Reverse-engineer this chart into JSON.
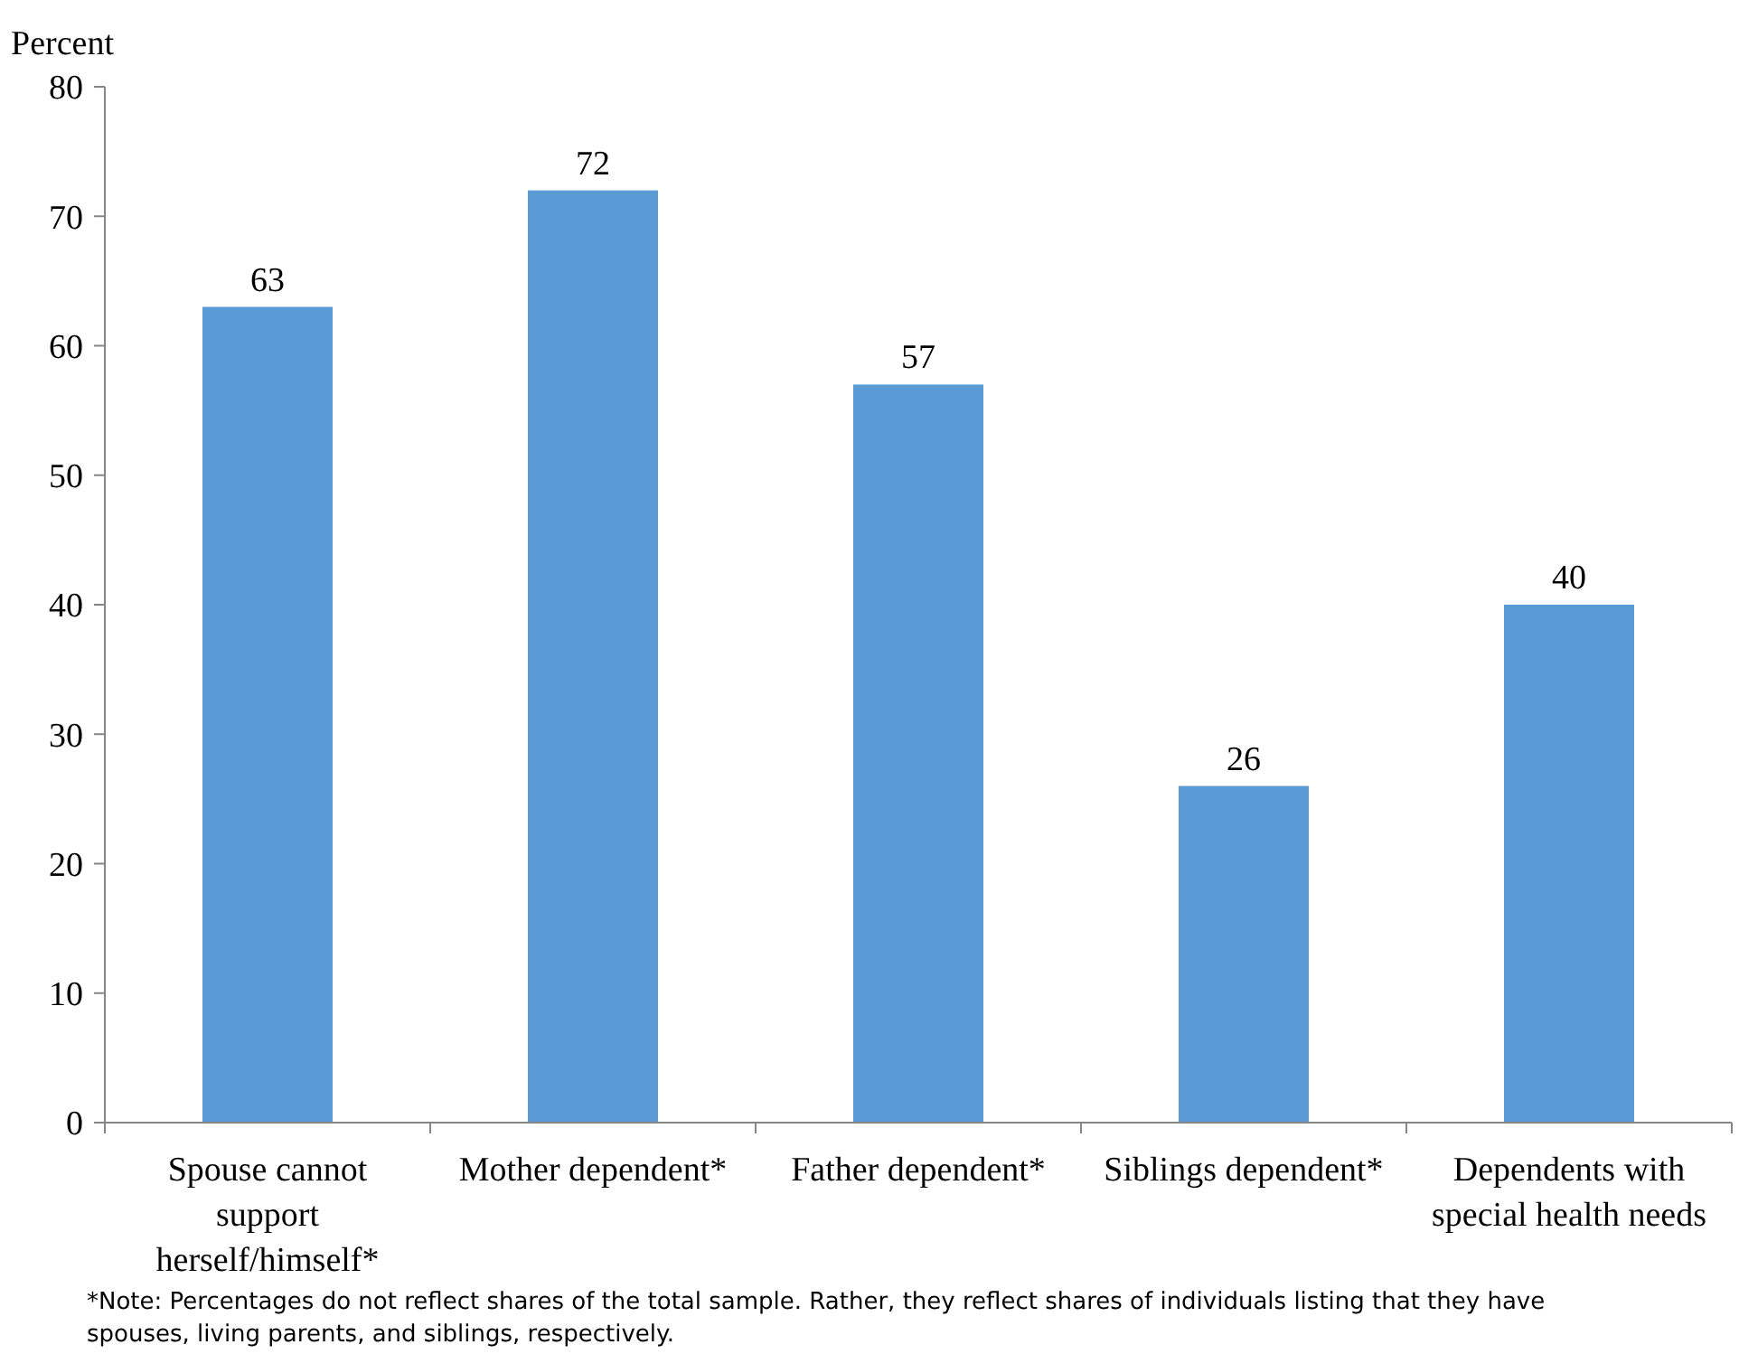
{
  "chart_data": {
    "type": "bar",
    "ylabel": "Percent",
    "categories": [
      "Spouse cannot support herself/himself*",
      "Mother dependent*",
      "Father dependent*",
      "Siblings dependent*",
      "Dependents with special health needs"
    ],
    "values": [
      63,
      72,
      57,
      26,
      40
    ],
    "color": "#5b9bd5",
    "ylim": [
      0,
      80
    ],
    "yticks": [
      0,
      10,
      20,
      30,
      40,
      50,
      60,
      70,
      80
    ],
    "grid": false,
    "data_labels": true,
    "annotations": [
      "*Note: Percentages do not reflect shares of the total sample. Rather, they reflect shares of individuals listing that they have spouses, living parents, and siblings, respectively."
    ]
  }
}
